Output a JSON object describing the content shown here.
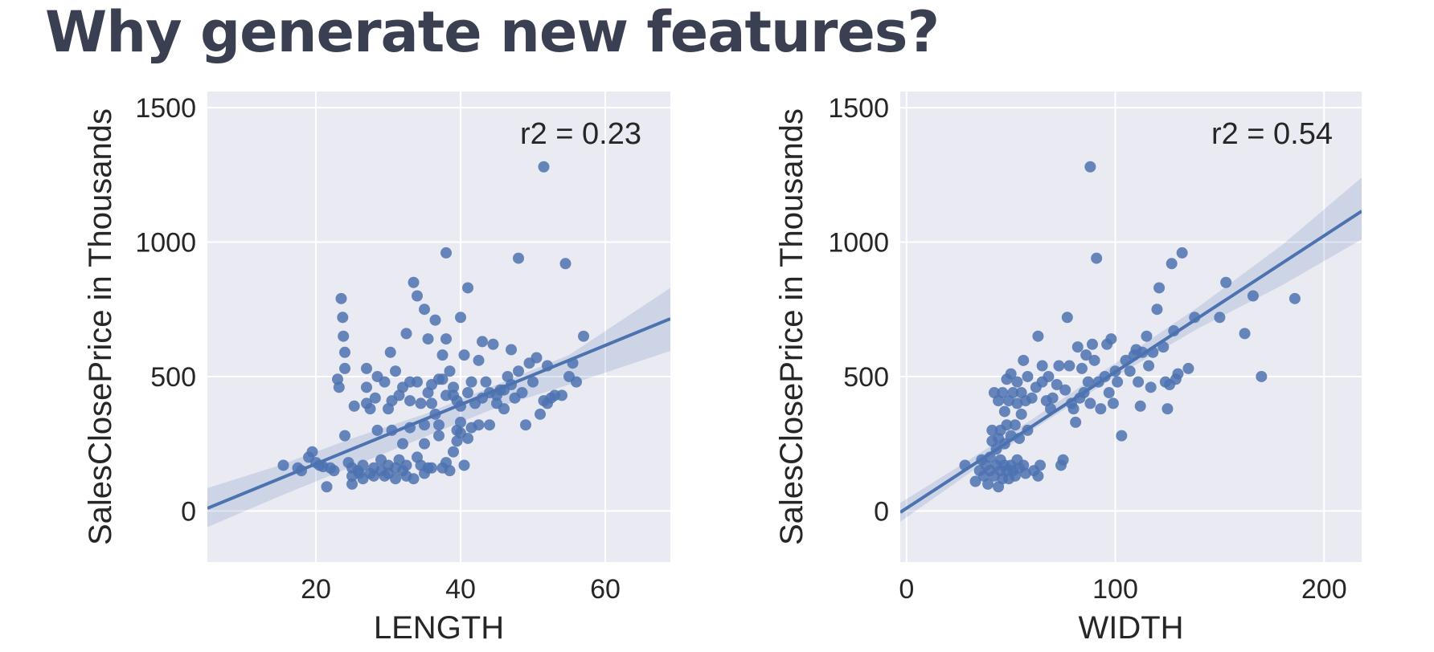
{
  "page": {
    "title": "Why generate new features?"
  },
  "chart_data": [
    {
      "type": "scatter",
      "title": "",
      "xlabel": "LENGTH",
      "ylabel": "SalesClosePrice in Thousands",
      "xlim": [
        5,
        69
      ],
      "ylim": [
        -190,
        1560
      ],
      "xticks": [
        20,
        40,
        60
      ],
      "yticks": [
        0,
        500,
        1000,
        1500
      ],
      "grid": true,
      "annotation": "r2 = 0.23",
      "regression": {
        "x": [
          5,
          69
        ],
        "y": [
          10,
          715
        ]
      },
      "confidence_band": {
        "x": [
          5,
          15,
          25,
          35,
          45,
          55,
          69
        ],
        "lower": [
          -60,
          55,
          165,
          275,
          385,
          470,
          595
        ],
        "upper": [
          85,
          170,
          270,
          360,
          470,
          580,
          830
        ]
      },
      "points": [
        [
          15.5,
          170
        ],
        [
          17.5,
          160
        ],
        [
          18,
          150
        ],
        [
          19,
          200
        ],
        [
          19.5,
          220
        ],
        [
          20,
          180
        ],
        [
          20.5,
          170
        ],
        [
          21,
          165
        ],
        [
          21.5,
          90
        ],
        [
          22,
          160
        ],
        [
          22.5,
          150
        ],
        [
          23,
          490
        ],
        [
          23.2,
          460
        ],
        [
          23.5,
          790
        ],
        [
          23.7,
          720
        ],
        [
          23.8,
          650
        ],
        [
          24,
          590
        ],
        [
          24,
          530
        ],
        [
          24,
          280
        ],
        [
          24.5,
          180
        ],
        [
          25,
          160
        ],
        [
          25,
          130
        ],
        [
          25,
          100
        ],
        [
          25.3,
          390
        ],
        [
          25.8,
          150
        ],
        [
          26,
          140
        ],
        [
          26.5,
          120
        ],
        [
          26.5,
          170
        ],
        [
          27,
          400
        ],
        [
          27,
          460
        ],
        [
          27,
          530
        ],
        [
          27.5,
          140
        ],
        [
          27.5,
          380
        ],
        [
          28,
          160
        ],
        [
          28,
          130
        ],
        [
          28.2,
          420
        ],
        [
          28.5,
          500
        ],
        [
          28.5,
          300
        ],
        [
          29,
          150
        ],
        [
          29,
          190
        ],
        [
          29.5,
          130
        ],
        [
          29.5,
          480
        ],
        [
          30,
          170
        ],
        [
          30,
          140
        ],
        [
          30,
          380
        ],
        [
          30.3,
          590
        ],
        [
          30.5,
          300
        ],
        [
          30.5,
          410
        ],
        [
          31,
          160
        ],
        [
          31,
          120
        ],
        [
          31,
          520
        ],
        [
          31.5,
          190
        ],
        [
          31.5,
          430
        ],
        [
          32,
          150
        ],
        [
          32,
          250
        ],
        [
          32,
          460
        ],
        [
          32.5,
          660
        ],
        [
          32.5,
          170
        ],
        [
          32.5,
          130
        ],
        [
          33,
          310
        ],
        [
          33,
          410
        ],
        [
          33,
          480
        ],
        [
          33.5,
          850
        ],
        [
          33.5,
          120
        ],
        [
          34,
          800
        ],
        [
          34,
          200
        ],
        [
          34,
          480
        ],
        [
          34.5,
          170
        ],
        [
          34.5,
          400
        ],
        [
          35,
          140
        ],
        [
          35,
          250
        ],
        [
          35,
          320
        ],
        [
          35,
          750
        ],
        [
          35.5,
          160
        ],
        [
          35.5,
          440
        ],
        [
          35.5,
          640
        ],
        [
          36,
          160
        ],
        [
          36,
          400
        ],
        [
          36,
          470
        ],
        [
          36.5,
          710
        ],
        [
          36.5,
          360
        ],
        [
          37,
          490
        ],
        [
          37,
          320
        ],
        [
          37,
          280
        ],
        [
          37.5,
          580
        ],
        [
          37.5,
          160
        ],
        [
          37.5,
          490
        ],
        [
          38,
          960
        ],
        [
          38,
          640
        ],
        [
          38,
          430
        ],
        [
          38,
          180
        ],
        [
          38.5,
          150
        ],
        [
          38.5,
          520
        ],
        [
          39,
          460
        ],
        [
          39,
          220
        ],
        [
          39,
          430
        ],
        [
          39.5,
          260
        ],
        [
          39.5,
          300
        ],
        [
          39.5,
          410
        ],
        [
          40,
          290
        ],
        [
          40,
          330
        ],
        [
          40,
          720
        ],
        [
          40,
          390
        ],
        [
          40.5,
          580
        ],
        [
          40.5,
          170
        ],
        [
          41,
          830
        ],
        [
          41,
          270
        ],
        [
          41,
          440
        ],
        [
          41.5,
          310
        ],
        [
          41.5,
          480
        ],
        [
          42,
          400
        ],
        [
          42.5,
          320
        ],
        [
          42.5,
          560
        ],
        [
          43,
          630
        ],
        [
          43,
          420
        ],
        [
          43.5,
          480
        ],
        [
          44,
          440
        ],
        [
          44,
          320
        ],
        [
          44.5,
          620
        ],
        [
          45,
          430
        ],
        [
          45,
          400
        ],
        [
          45.5,
          450
        ],
        [
          46,
          380
        ],
        [
          46,
          450
        ],
        [
          46.5,
          500
        ],
        [
          47,
          470
        ],
        [
          47,
          600
        ],
        [
          47.5,
          420
        ],
        [
          48,
          940
        ],
        [
          48,
          520
        ],
        [
          48.5,
          440
        ],
        [
          49,
          320
        ],
        [
          49.5,
          550
        ],
        [
          50,
          480
        ],
        [
          50.5,
          570
        ],
        [
          51,
          360
        ],
        [
          51.5,
          1280
        ],
        [
          51.5,
          410
        ],
        [
          52,
          540
        ],
        [
          52,
          400
        ],
        [
          52.5,
          420
        ],
        [
          53,
          430
        ],
        [
          54,
          430
        ],
        [
          54.5,
          920
        ],
        [
          55,
          500
        ],
        [
          55.5,
          550
        ],
        [
          56,
          480
        ],
        [
          57,
          650
        ]
      ]
    },
    {
      "type": "scatter",
      "title": "",
      "xlabel": "WIDTH",
      "ylabel": "SalesClosePrice in Thousands",
      "xlim": [
        -3,
        218
      ],
      "ylim": [
        -190,
        1560
      ],
      "xticks": [
        0,
        100,
        200
      ],
      "yticks": [
        0,
        500,
        1000,
        1500
      ],
      "grid": true,
      "annotation": "r2 = 0.54",
      "regression": {
        "x": [
          -3,
          218
        ],
        "y": [
          -5,
          1115
        ]
      },
      "confidence_band": {
        "x": [
          -3,
          30,
          60,
          100,
          140,
          180,
          218
        ],
        "lower": [
          -40,
          140,
          300,
          500,
          680,
          840,
          1010
        ],
        "upper": [
          30,
          190,
          340,
          550,
          760,
          990,
          1240
        ]
      },
      "points": [
        [
          28,
          170
        ],
        [
          33,
          110
        ],
        [
          35,
          150
        ],
        [
          36,
          190
        ],
        [
          37,
          130
        ],
        [
          38,
          170
        ],
        [
          39,
          100
        ],
        [
          40,
          150
        ],
        [
          40,
          200
        ],
        [
          41,
          260
        ],
        [
          41,
          300
        ],
        [
          42,
          130
        ],
        [
          42,
          440
        ],
        [
          43,
          170
        ],
        [
          43,
          230
        ],
        [
          44,
          90
        ],
        [
          44,
          270
        ],
        [
          44,
          410
        ],
        [
          45,
          150
        ],
        [
          45,
          190
        ],
        [
          45,
          300
        ],
        [
          46,
          120
        ],
        [
          46,
          440
        ],
        [
          47,
          170
        ],
        [
          47,
          250
        ],
        [
          47,
          370
        ],
        [
          48,
          150
        ],
        [
          48,
          490
        ],
        [
          48,
          320
        ],
        [
          49,
          120
        ],
        [
          49,
          410
        ],
        [
          50,
          170
        ],
        [
          50,
          280
        ],
        [
          50,
          510
        ],
        [
          51,
          150
        ],
        [
          51,
          440
        ],
        [
          52,
          130
        ],
        [
          52,
          320
        ],
        [
          53,
          190
        ],
        [
          53,
          400
        ],
        [
          53,
          480
        ],
        [
          54,
          160
        ],
        [
          54,
          270
        ],
        [
          55,
          360
        ],
        [
          55,
          440
        ],
        [
          56,
          170
        ],
        [
          56,
          560
        ],
        [
          57,
          140
        ],
        [
          57,
          410
        ],
        [
          58,
          500
        ],
        [
          58,
          300
        ],
        [
          60,
          420
        ],
        [
          61,
          150
        ],
        [
          62,
          460
        ],
        [
          63,
          130
        ],
        [
          63,
          650
        ],
        [
          64,
          170
        ],
        [
          65,
          480
        ],
        [
          65,
          540
        ],
        [
          67,
          410
        ],
        [
          68,
          500
        ],
        [
          69,
          380
        ],
        [
          70,
          420
        ],
        [
          72,
          470
        ],
        [
          73,
          540
        ],
        [
          74,
          170
        ],
        [
          75,
          190
        ],
        [
          76,
          450
        ],
        [
          77,
          720
        ],
        [
          78,
          540
        ],
        [
          79,
          400
        ],
        [
          80,
          380
        ],
        [
          81,
          330
        ],
        [
          82,
          610
        ],
        [
          83,
          420
        ],
        [
          84,
          530
        ],
        [
          85,
          440
        ],
        [
          86,
          580
        ],
        [
          87,
          480
        ],
        [
          88,
          400
        ],
        [
          88,
          1280
        ],
        [
          89,
          620
        ],
        [
          90,
          560
        ],
        [
          91,
          940
        ],
        [
          92,
          480
        ],
        [
          93,
          380
        ],
        [
          95,
          500
        ],
        [
          96,
          620
        ],
        [
          97,
          440
        ],
        [
          98,
          640
        ],
        [
          99,
          400
        ],
        [
          100,
          520
        ],
        [
          101,
          480
        ],
        [
          103,
          280
        ],
        [
          105,
          560
        ],
        [
          107,
          520
        ],
        [
          109,
          580
        ],
        [
          110,
          600
        ],
        [
          111,
          480
        ],
        [
          112,
          390
        ],
        [
          113,
          590
        ],
        [
          115,
          650
        ],
        [
          116,
          540
        ],
        [
          117,
          460
        ],
        [
          118,
          590
        ],
        [
          120,
          750
        ],
        [
          121,
          830
        ],
        [
          123,
          610
        ],
        [
          124,
          480
        ],
        [
          125,
          380
        ],
        [
          126,
          470
        ],
        [
          127,
          920
        ],
        [
          128,
          670
        ],
        [
          129,
          490
        ],
        [
          130,
          510
        ],
        [
          132,
          960
        ],
        [
          135,
          530
        ],
        [
          138,
          720
        ],
        [
          150,
          720
        ],
        [
          153,
          850
        ],
        [
          162,
          660
        ],
        [
          166,
          800
        ],
        [
          170,
          500
        ],
        [
          186,
          790
        ]
      ]
    }
  ]
}
